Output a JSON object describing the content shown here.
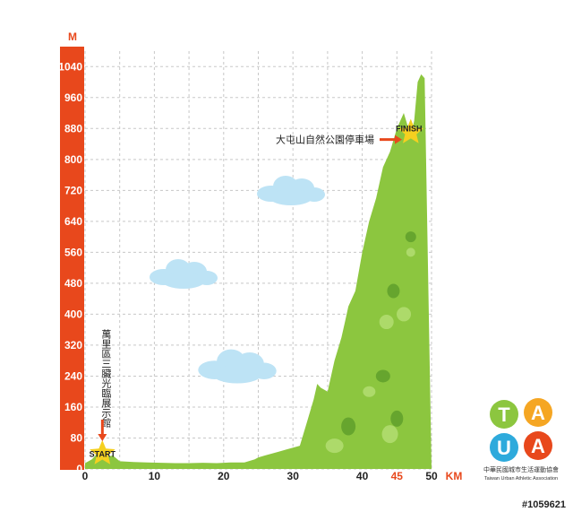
{
  "chart_data": {
    "type": "area",
    "y_unit": "M",
    "x_unit": "KM",
    "yticks": [
      0,
      80,
      160,
      240,
      320,
      400,
      480,
      560,
      640,
      720,
      800,
      880,
      960,
      1040
    ],
    "xticks": [
      "0",
      "10",
      "20",
      "30",
      "40",
      "45",
      "50"
    ],
    "xtick_values": [
      0,
      10,
      20,
      30,
      40,
      45,
      50
    ],
    "highlight_xticks": [
      "45"
    ],
    "xlim": [
      0,
      50
    ],
    "ylim": [
      0,
      1080
    ],
    "grid": true,
    "profile": {
      "x": [
        0,
        1,
        2,
        3,
        4,
        5,
        7,
        9,
        11,
        13,
        15,
        17,
        19,
        21,
        23,
        24.5,
        25,
        26,
        27,
        28,
        29,
        30,
        31,
        32,
        33,
        33.5,
        34,
        35,
        36,
        37,
        37.5,
        38,
        39,
        40,
        41,
        42,
        43,
        44,
        45,
        46,
        47,
        47.5,
        48,
        48.5,
        49,
        50
      ],
      "y": [
        15,
        25,
        45,
        30,
        35,
        20,
        18,
        17,
        16,
        15,
        15,
        16,
        15,
        17,
        17,
        25,
        30,
        35,
        40,
        45,
        50,
        55,
        60,
        120,
        180,
        220,
        210,
        200,
        280,
        340,
        380,
        420,
        460,
        560,
        640,
        700,
        780,
        820,
        880,
        920,
        860,
        900,
        1000,
        1020,
        1010,
        0
      ]
    },
    "start": {
      "label": "START",
      "x": 2.5,
      "y": 40,
      "annotation": "萬里區三臟光臨展示館"
    },
    "finish": {
      "label": "FINISH",
      "x": 47,
      "y": 870,
      "annotation": "大屯山自然公園停車場"
    },
    "colors": {
      "axis_bar": "#e8481c",
      "terrain": "#8cc63f",
      "terrain_dark": "#5a9a2a",
      "star": "#f5d020",
      "arrow": "#e8481c",
      "cloud": "#bde3f5",
      "grid": "#c8c8c8"
    }
  },
  "logo": {
    "letters": [
      "T",
      "A",
      "U",
      "A"
    ],
    "colors": [
      "#8cc63f",
      "#f5a623",
      "#2eaadc",
      "#e8481c"
    ],
    "name_zh": "中華民國城市生活運動協會",
    "name_en": "Taiwan Urban Athletic Association"
  },
  "stamp": "#1059621"
}
